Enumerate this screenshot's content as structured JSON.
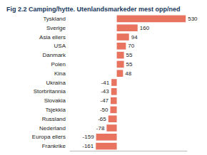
{
  "chart_data": {
    "type": "bar",
    "title": "Fig 2.2 Camping/hytte. Utenlandsmarkeder mest opp/ned",
    "orientation": "horizontal",
    "categories": [
      "Tyskland",
      "Sverige",
      "Asia ellers",
      "USA",
      "Danmark",
      "Polen",
      "Kina",
      "Ukraina",
      "Storbritannia",
      "Slovakia",
      "Tsjekkia",
      "Russland",
      "Nederland",
      "Europa ellers",
      "Frankrike"
    ],
    "values": [
      530,
      160,
      94,
      70,
      55,
      55,
      48,
      -41,
      -43,
      -47,
      -50,
      -65,
      -78,
      -159,
      -161
    ],
    "color": "#e8735f",
    "xlim": [
      -360,
      540
    ],
    "data_labels": true,
    "tick_labels": "y",
    "grid": false
  }
}
